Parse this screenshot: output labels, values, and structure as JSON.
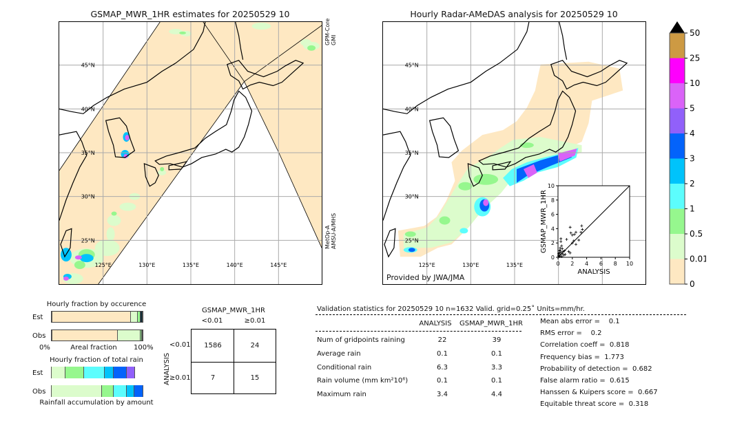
{
  "left_map": {
    "title": "GSMAP_MWR_1HR estimates for 20250529 10",
    "sensor_top": [
      "GPM-Core",
      "GMI"
    ],
    "sensor_bottom": [
      "MetOp-A",
      "AMSU-A/MHS"
    ],
    "lat_labels": [
      "45°N",
      "40°N",
      "35°N",
      "30°N",
      "25°N"
    ],
    "lon_labels": [
      "125°E",
      "130°E",
      "135°E",
      "140°E",
      "145°E"
    ]
  },
  "right_map": {
    "title": "Hourly Radar-AMeDAS analysis for 20250529 10",
    "credit": "Provided by JWA/JMA",
    "lat_labels": [
      "45°N",
      "40°N",
      "35°N",
      "30°N",
      "25°N"
    ],
    "lon_labels": [
      "125°E",
      "130°E",
      "135°E"
    ]
  },
  "colorbar": {
    "ticks": [
      "0",
      "0.01",
      "0.5",
      "1",
      "2",
      "3",
      "4",
      "5",
      "10",
      "25",
      "50"
    ],
    "colors": [
      "#fee8c2",
      "#dcfccc",
      "#96f78e",
      "#5cfdfd",
      "#00c3fb",
      "#0363fb",
      "#9160fa",
      "#da63f8",
      "#fe00fd",
      "#cd9a43"
    ],
    "extend_color": "#000000"
  },
  "chart_data": [
    {
      "type": "scatter",
      "xlabel": "ANALYSIS",
      "ylabel": "GSMAP_MWR_1HR",
      "xlim": [
        0,
        10
      ],
      "ylim": [
        0,
        10
      ],
      "xticks": [
        "0",
        "2",
        "4",
        "6",
        "8",
        "10"
      ],
      "yticks": [
        "0",
        "2",
        "4",
        "6",
        "8",
        "10"
      ],
      "points": [
        [
          1.7,
          4.2
        ],
        [
          1.8,
          3.4
        ],
        [
          2.0,
          3.1
        ],
        [
          2.3,
          3.2
        ],
        [
          2.5,
          3.5
        ],
        [
          3.3,
          4.4
        ],
        [
          3.4,
          3.9
        ],
        [
          3.2,
          3.5
        ],
        [
          2.0,
          2.0
        ],
        [
          2.2,
          2.3
        ],
        [
          2.5,
          1.8
        ],
        [
          2.9,
          2.4
        ],
        [
          1.2,
          2.5
        ],
        [
          0.4,
          2.6
        ],
        [
          0.4,
          2.2
        ],
        [
          1.5,
          0.8
        ],
        [
          1.7,
          0.6
        ],
        [
          0.8,
          0.3
        ],
        [
          0.5,
          1.6
        ],
        [
          0.6,
          1.2
        ],
        [
          0.3,
          1.3
        ],
        [
          0.2,
          0.9
        ],
        [
          0.4,
          0.7
        ],
        [
          0.1,
          0.5
        ],
        [
          0.3,
          0.3
        ],
        [
          0.2,
          0.1
        ],
        [
          0.6,
          0.5
        ],
        [
          0.9,
          0.9
        ],
        [
          1.0,
          0.4
        ],
        [
          0.1,
          0.2
        ],
        [
          0.5,
          0.1
        ],
        [
          0.7,
          0.8
        ],
        [
          0.3,
          1.0
        ],
        [
          0.2,
          0.6
        ]
      ]
    },
    {
      "type": "bar",
      "title": "Hourly fraction by occurence",
      "categories": [
        "Est",
        "Obs"
      ],
      "xlabel": "Areal fraction",
      "xtick_left": "0%",
      "xtick_right": "100%",
      "series": [
        {
          "values": [
            87,
            73
          ],
          "color": "#fee8c2"
        },
        {
          "values": [
            8,
            25
          ],
          "color": "#dcfccc"
        },
        {
          "values": [
            2.5,
            1
          ],
          "color": "#96f78e"
        },
        {
          "values": [
            2.5,
            1
          ],
          "color": "#0b2a33"
        }
      ]
    },
    {
      "type": "bar",
      "title": "Hourly fraction of total rain",
      "categories": [
        "Est",
        "Obs"
      ],
      "xlabel": "Rainfall accumulation by amount",
      "series": [
        {
          "values": [
            16,
            55
          ],
          "color": "#dcfccc"
        },
        {
          "values": [
            20,
            13
          ],
          "color": "#96f78e"
        },
        {
          "values": [
            22,
            14
          ],
          "color": "#5cfdfd"
        },
        {
          "values": [
            10,
            8
          ],
          "color": "#00c3fb"
        },
        {
          "values": [
            14,
            10
          ],
          "color": "#0363fb"
        },
        {
          "values": [
            9,
            0
          ],
          "color": "#9160fa"
        }
      ]
    }
  ],
  "contingency": {
    "title": "GSMAP_MWR_1HR",
    "col_labels": [
      "<0.01",
      "≥0.01"
    ],
    "row_title": "ANALYSIS",
    "row_labels": [
      "<0.01",
      "≥0.01"
    ],
    "cells": [
      [
        "1586",
        "24"
      ],
      [
        "7",
        "15"
      ]
    ]
  },
  "stats": {
    "header": "Validation statistics for 20250529 10  n=1632 Valid. grid=0.25˚ Units=mm/hr.",
    "col_headers": [
      "ANALYSIS",
      "GSMAP_MWR_1HR"
    ],
    "rows": [
      {
        "label": "Num of gridpoints raining",
        "a": "22",
        "b": "39"
      },
      {
        "label": "Average rain",
        "a": "0.1",
        "b": "0.1"
      },
      {
        "label": "Conditional rain",
        "a": "6.3",
        "b": "3.3"
      },
      {
        "label": "Rain volume (mm km²10⁶)",
        "a": "0.1",
        "b": "0.1"
      },
      {
        "label": "Maximum rain",
        "a": "3.4",
        "b": "4.4"
      }
    ],
    "scores": [
      "Mean abs error =    0.1",
      "RMS error =    0.2",
      "Correlation coeff =  0.818",
      "Frequency bias =  1.773",
      "Probability of detection =  0.682",
      "False alarm ratio =  0.615",
      "Hanssen & Kuipers score =  0.667",
      "Equitable threat score =  0.318"
    ]
  }
}
